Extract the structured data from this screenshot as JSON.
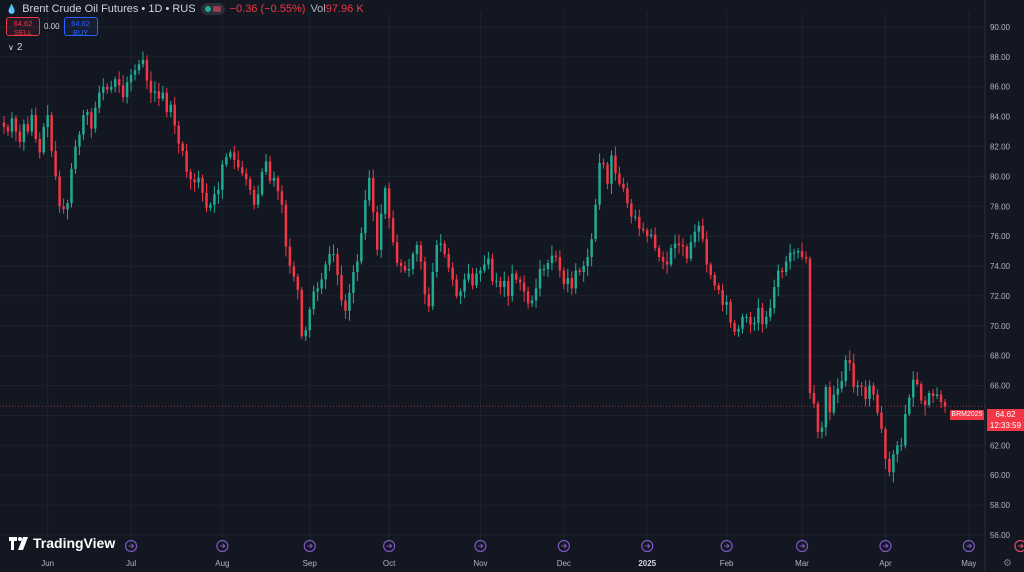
{
  "header": {
    "title": "Brent Crude Oil Futures • 1D • RUS",
    "change": "−0.36 (−0.55%)",
    "vol_label": "Vol",
    "vol_value": "97.96 K"
  },
  "trade": {
    "sell_price": "64.62",
    "sell_label": "SELL",
    "spread": "0.00",
    "buy_price": "64.62",
    "buy_label": "BUY"
  },
  "indicators_toggle": "2",
  "brand": "TradingView",
  "price_scale": {
    "last_price": "64.62",
    "countdown": "12:33:59",
    "symbol_tag": "BRM2025"
  },
  "colors": {
    "background": "#131722",
    "up": "#22ab94",
    "down": "#f23645",
    "grid": "#1e222d",
    "text": "#b2b5be",
    "event": "#7e57c2"
  },
  "chart_data": {
    "type": "candlestick",
    "title": "Brent Crude Oil Futures",
    "interval": "1D",
    "ylim": [
      56,
      91
    ],
    "y_ticks": [
      "90.00",
      "88.00",
      "86.00",
      "84.00",
      "82.00",
      "80.00",
      "78.00",
      "76.00",
      "74.00",
      "72.00",
      "70.00",
      "68.00",
      "66.00",
      "64.00",
      "62.00",
      "60.00",
      "58.00",
      "56.00"
    ],
    "x_ticks": [
      {
        "label": "Jun",
        "i": 11
      },
      {
        "label": "Jul",
        "i": 32
      },
      {
        "label": "Aug",
        "i": 55
      },
      {
        "label": "Sep",
        "i": 77
      },
      {
        "label": "Oct",
        "i": 97
      },
      {
        "label": "Nov",
        "i": 120
      },
      {
        "label": "Dec",
        "i": 141
      },
      {
        "label": "2025",
        "i": 162,
        "bold": true
      },
      {
        "label": "Feb",
        "i": 182
      },
      {
        "label": "Mar",
        "i": 201
      },
      {
        "label": "Apr",
        "i": 222
      },
      {
        "label": "May",
        "i": 243
      },
      {
        "label": "Jun",
        "i": 265
      }
    ],
    "events": [
      {
        "i": 32
      },
      {
        "i": 55
      },
      {
        "i": 77
      },
      {
        "i": 97
      },
      {
        "i": 120
      },
      {
        "i": 141
      },
      {
        "i": 162
      },
      {
        "i": 182
      },
      {
        "i": 201
      },
      {
        "i": 222
      },
      {
        "i": 243
      },
      {
        "i": 256,
        "kind": "live"
      },
      {
        "i": 264
      }
    ],
    "last_price": 64.62,
    "closes": [
      83.3,
      83.0,
      83.9,
      83.0,
      82.3,
      83.5,
      83.0,
      84.1,
      82.5,
      81.6,
      83.3,
      84.1,
      81.7,
      80.0,
      78.0,
      77.8,
      78.2,
      80.5,
      82.0,
      82.8,
      84.1,
      84.3,
      83.2,
      84.6,
      85.6,
      86.0,
      85.8,
      86.0,
      86.5,
      86.1,
      85.3,
      86.3,
      86.8,
      87.1,
      87.5,
      87.8,
      86.4,
      85.6,
      85.7,
      85.2,
      85.6,
      84.3,
      84.8,
      83.4,
      82.2,
      81.7,
      80.3,
      79.8,
      79.6,
      79.9,
      78.9,
      77.9,
      78.1,
      78.8,
      79.1,
      80.8,
      81.3,
      81.6,
      81.1,
      80.6,
      80.2,
      79.8,
      79.1,
      78.1,
      78.8,
      80.3,
      81.0,
      79.7,
      79.9,
      79.0,
      78.1,
      75.3,
      74.0,
      73.3,
      72.4,
      69.3,
      69.7,
      71.1,
      72.3,
      72.5,
      73.1,
      74.1,
      74.8,
      74.8,
      73.4,
      71.7,
      71.0,
      72.2,
      73.6,
      74.3,
      76.2,
      78.4,
      79.9,
      77.6,
      75.1,
      77.5,
      79.2,
      77.2,
      75.6,
      74.2,
      74.0,
      73.7,
      73.8,
      74.8,
      75.4,
      74.3,
      72.1,
      71.3,
      73.6,
      75.4,
      75.5,
      74.8,
      73.9,
      73.1,
      72.0,
      72.3,
      73.1,
      73.5,
      72.7,
      73.5,
      73.7,
      74.1,
      74.5,
      73.0,
      73.0,
      72.6,
      73.0,
      72.0,
      73.5,
      73.1,
      72.9,
      72.3,
      71.5,
      71.7,
      72.5,
      73.8,
      73.8,
      74.2,
      74.7,
      74.6,
      73.7,
      72.8,
      73.2,
      72.5,
      73.7,
      73.6,
      74.0,
      74.6,
      75.8,
      78.1,
      80.9,
      80.8,
      79.5,
      81.4,
      80.2,
      79.5,
      79.2,
      78.2,
      77.3,
      77.3,
      76.5,
      76.4,
      76.0,
      76.1,
      75.2,
      74.6,
      74.3,
      74.1,
      75.2,
      75.5,
      75.4,
      75.3,
      74.5,
      75.6,
      76.3,
      76.7,
      75.8,
      74.1,
      73.4,
      72.7,
      72.4,
      71.4,
      71.6,
      70.2,
      69.6,
      69.8,
      70.6,
      70.6,
      70.1,
      70.2,
      71.2,
      70.1,
      70.6,
      71.2,
      72.6,
      73.7,
      73.6,
      74.3,
      74.9,
      74.9,
      75.0,
      74.6,
      74.5,
      65.5,
      64.8,
      62.9,
      63.2,
      65.9,
      64.2,
      65.4,
      65.8,
      66.3,
      67.7,
      67.5,
      65.9,
      66.0,
      65.9,
      65.1,
      66.0,
      65.4,
      64.2,
      63.1,
      61.1,
      60.2,
      61.4,
      62.0,
      62.0,
      64.1,
      65.2,
      66.4,
      66.1,
      65.0,
      64.7,
      65.5,
      65.3,
      65.4,
      64.9,
      64.6
    ]
  }
}
